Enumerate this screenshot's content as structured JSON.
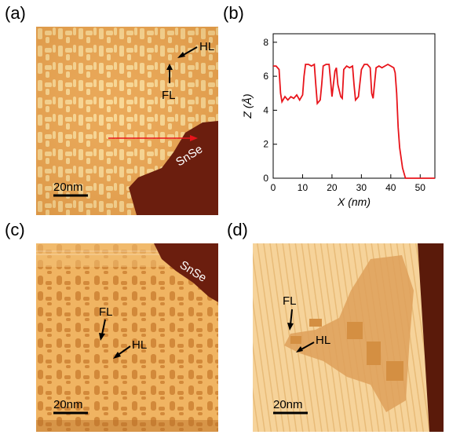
{
  "figure": {
    "panels": {
      "a": {
        "label": "(a)",
        "scale_bar": "20nm",
        "substrate_label": "SnSe",
        "annotations": {
          "hl": "HL",
          "fl": "FL"
        }
      },
      "b": {
        "label": "(b)"
      },
      "c": {
        "label": "(c)",
        "scale_bar": "20nm",
        "substrate_label": "SnSe",
        "annotations": {
          "hl": "HL",
          "fl": "FL"
        }
      },
      "d": {
        "label": "(d)",
        "scale_bar": "20nm",
        "annotations": {
          "hl": "HL",
          "fl": "FL"
        }
      }
    },
    "colors": {
      "stm_light": "#f8d58e",
      "stm_mid": "#e9a24b",
      "stm_dark": "#cf7f30",
      "substrate": "#6b1e0e",
      "profile_line": "#e8141b",
      "arrow": "#000000"
    }
  },
  "chart_data": {
    "type": "line",
    "title": "",
    "xlabel": "X (nm)",
    "ylabel": "Z (Å)",
    "xlim": [
      0,
      55
    ],
    "ylim": [
      0,
      8.5
    ],
    "xticks": [
      0,
      10,
      20,
      30,
      40,
      50
    ],
    "yticks": [
      0,
      2,
      4,
      6,
      8
    ],
    "grid": false,
    "series": [
      {
        "color": "#e8141b",
        "x": [
          0,
          1,
          2,
          2.5,
          3,
          4,
          5,
          6,
          7,
          8,
          9,
          10,
          10.5,
          11,
          12,
          13,
          14,
          14.5,
          15,
          16,
          16.5,
          17,
          18,
          19,
          19.5,
          20,
          21,
          21.5,
          22,
          23,
          23.5,
          24,
          25,
          26,
          27,
          27.5,
          28,
          29,
          30,
          31,
          32,
          33,
          33.5,
          34,
          35,
          36,
          37,
          38,
          39,
          40,
          41,
          41.5,
          42,
          42.5,
          43,
          44,
          45,
          47,
          50,
          55
        ],
        "y": [
          6.6,
          6.6,
          6.4,
          5.0,
          4.5,
          4.8,
          4.6,
          4.8,
          4.7,
          4.9,
          4.6,
          4.9,
          6.0,
          6.7,
          6.7,
          6.6,
          6.7,
          5.5,
          4.4,
          4.6,
          5.5,
          6.6,
          6.7,
          6.7,
          5.8,
          4.8,
          6.3,
          6.5,
          5.5,
          4.8,
          4.7,
          6.4,
          6.6,
          6.5,
          6.6,
          5.5,
          4.6,
          4.8,
          6.4,
          6.7,
          6.7,
          6.5,
          5.0,
          4.7,
          6.5,
          6.6,
          6.5,
          6.6,
          6.7,
          6.6,
          6.5,
          6.2,
          5.0,
          3.0,
          1.8,
          0.6,
          0.0,
          0.0,
          0.0,
          0.0
        ]
      }
    ]
  }
}
